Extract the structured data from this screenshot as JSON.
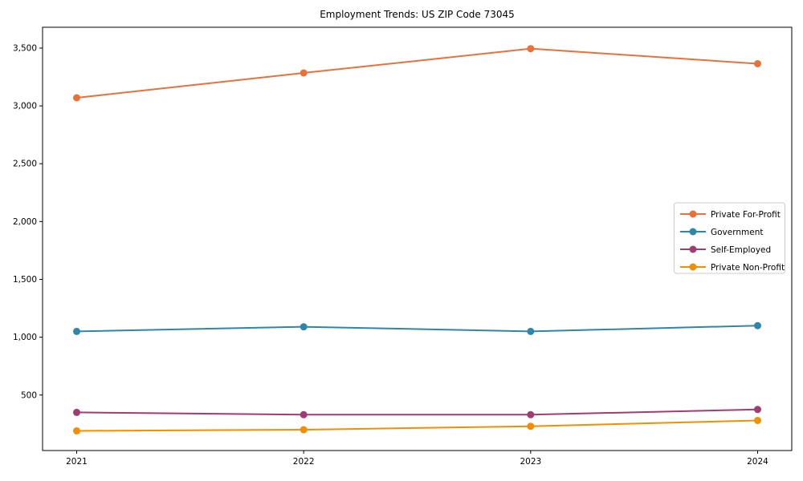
{
  "title": "Employment Trends: US ZIP Code 73045",
  "chart_data": {
    "type": "line",
    "title": "Employment Trends: US ZIP Code 73045",
    "categories": [
      "2021",
      "2022",
      "2023",
      "2024"
    ],
    "series": [
      {
        "name": "Private For-Profit",
        "color": "#E8713B",
        "values": [
          3070,
          3285,
          3495,
          3365
        ]
      },
      {
        "name": "Government",
        "color": "#2E86AB",
        "values": [
          1050,
          1090,
          1050,
          1100
        ]
      },
      {
        "name": "Self-Employed",
        "color": "#A23B72",
        "values": [
          350,
          330,
          330,
          375
        ]
      },
      {
        "name": "Private Non-Profit",
        "color": "#F18F01",
        "values": [
          190,
          200,
          230,
          280
        ]
      }
    ],
    "yticks": [
      500,
      1000,
      1500,
      2000,
      2500,
      3000,
      3500
    ],
    "ytick_labels": [
      "500",
      "1,000",
      "1,500",
      "2,000",
      "2,500",
      "3,000",
      "3,500"
    ],
    "ylim": [
      20,
      3680
    ],
    "xlabel": "",
    "ylabel": "",
    "grid": false,
    "legend_position": "center-right",
    "legend_border_color": "#cccccc",
    "marker": "circle",
    "axis_color": "#000000"
  }
}
